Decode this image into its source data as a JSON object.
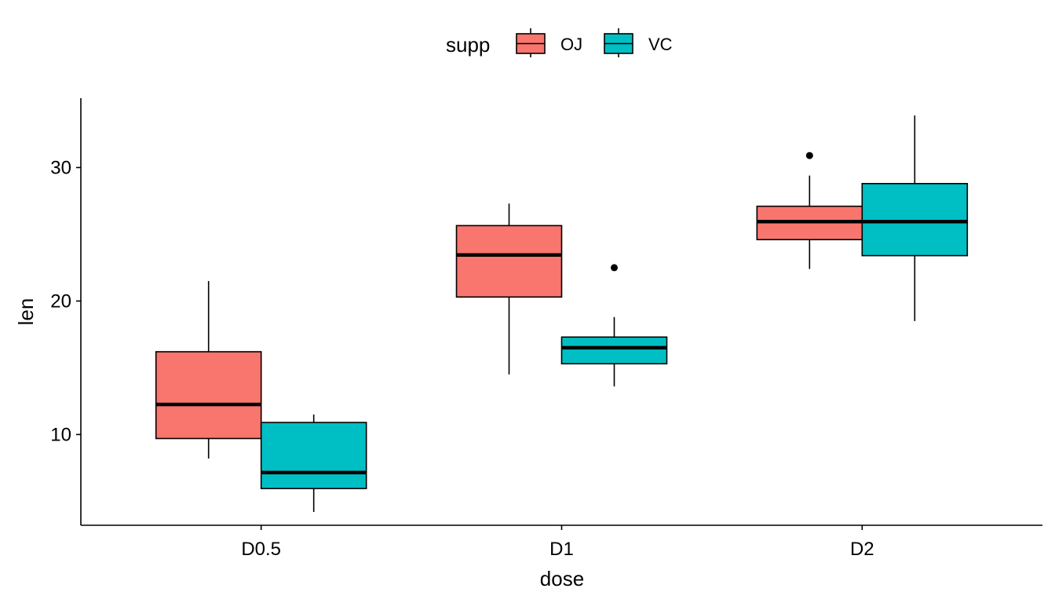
{
  "chart_data": {
    "type": "boxplot",
    "xlabel": "dose",
    "ylabel": "len",
    "categories": [
      "D0.5",
      "D1",
      "D2"
    ],
    "ylim": [
      3.2,
      35.2
    ],
    "yticks": [
      10,
      20,
      30
    ],
    "grid": false,
    "legend": {
      "title": "supp",
      "position": "top"
    },
    "series": [
      {
        "name": "OJ",
        "color": "#F8766D",
        "boxes": [
          {
            "category": "D0.5",
            "min": 8.2,
            "q1": 9.7,
            "median": 12.25,
            "q3": 16.2,
            "max": 21.5,
            "outliers": []
          },
          {
            "category": "D1",
            "min": 14.5,
            "q1": 20.3,
            "median": 23.45,
            "q3": 25.65,
            "max": 27.3,
            "outliers": []
          },
          {
            "category": "D2",
            "min": 22.4,
            "q1": 24.6,
            "median": 25.95,
            "q3": 27.1,
            "max": 29.4,
            "outliers": [
              30.9
            ]
          }
        ]
      },
      {
        "name": "VC",
        "color": "#00BFC4",
        "boxes": [
          {
            "category": "D0.5",
            "min": 4.2,
            "q1": 5.95,
            "median": 7.15,
            "q3": 10.9,
            "max": 11.5,
            "outliers": []
          },
          {
            "category": "D1",
            "min": 13.6,
            "q1": 15.3,
            "median": 16.5,
            "q3": 17.3,
            "max": 18.8,
            "outliers": [
              22.5
            ]
          },
          {
            "category": "D2",
            "min": 18.5,
            "q1": 23.4,
            "median": 25.95,
            "q3": 28.8,
            "max": 33.9,
            "outliers": []
          }
        ]
      }
    ]
  }
}
